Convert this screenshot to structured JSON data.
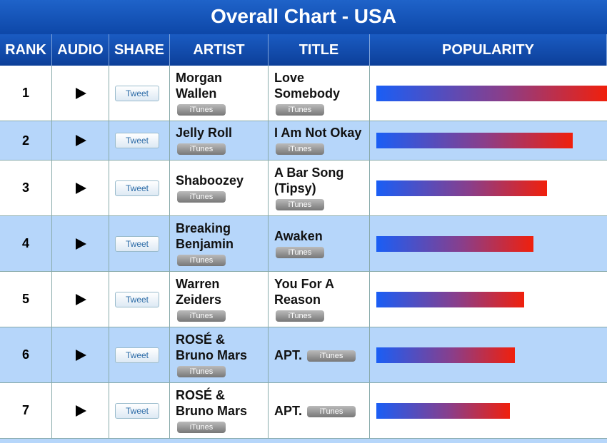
{
  "header": {
    "title": "Overall Chart - USA"
  },
  "columns": [
    "RANK",
    "AUDIO",
    "SHARE",
    "ARTIST",
    "TITLE",
    "POPULARITY"
  ],
  "buttons": {
    "tweet": "Tweet",
    "store": "iTunes"
  },
  "rows": [
    {
      "rank": "1",
      "artist": "Morgan Wallen",
      "title": "Love Somebody",
      "popularity": 100
    },
    {
      "rank": "2",
      "artist": "Jelly Roll",
      "title": "I Am Not Okay",
      "popularity": 85
    },
    {
      "rank": "3",
      "artist": "Shaboozey",
      "title": "A Bar Song (Tipsy)",
      "popularity": 74
    },
    {
      "rank": "4",
      "artist": "Breaking Benjamin",
      "title": "Awaken",
      "popularity": 68
    },
    {
      "rank": "5",
      "artist": "Warren Zeiders",
      "title": "You For A Reason",
      "popularity": 64
    },
    {
      "rank": "6",
      "artist": "ROSÉ & Bruno Mars",
      "title": "APT.",
      "popularity": 60
    },
    {
      "rank": "7",
      "artist": "ROSÉ & Bruno Mars",
      "title": "APT.",
      "popularity": 58
    }
  ]
}
